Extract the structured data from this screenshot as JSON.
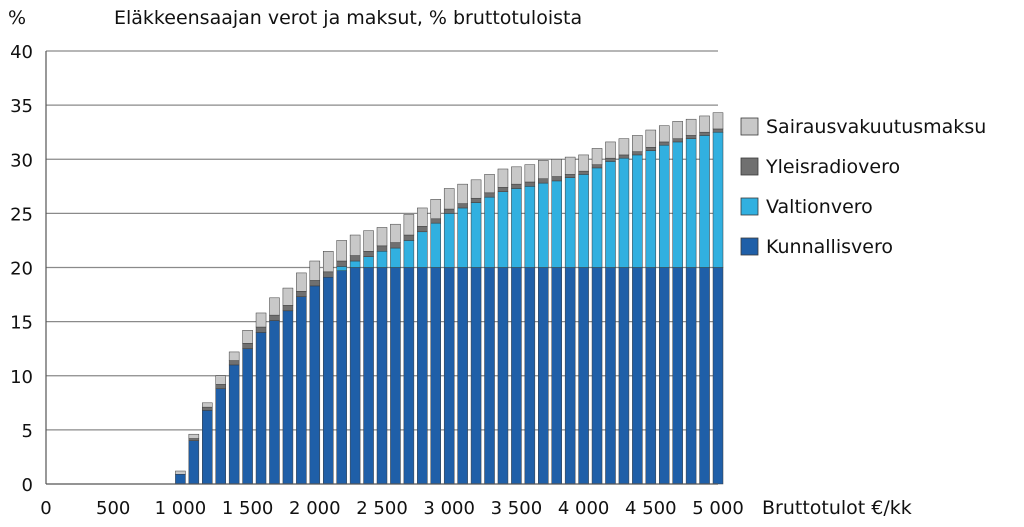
{
  "chart_data": {
    "type": "bar",
    "stacked": true,
    "title": "Eläkkeensaajan verot ja maksut, % bruttotuloista",
    "ylabel": "%",
    "xlabel": "Bruttotulot €/kk",
    "ylim": [
      0,
      40
    ],
    "xlim": [
      0,
      5000
    ],
    "y_ticks": [
      0,
      5,
      10,
      15,
      20,
      25,
      30,
      35,
      40
    ],
    "x_ticks": [
      0,
      500,
      1000,
      1500,
      2000,
      2500,
      3000,
      3500,
      4000,
      4500,
      5000
    ],
    "x_tick_labels": [
      "0",
      "500",
      "1 000",
      "1 500",
      "2 000",
      "2 500",
      "3 000",
      "3 500",
      "4 000",
      "4 500",
      "5 000"
    ],
    "grid": true,
    "legend_position": "right",
    "x": [
      1000,
      1100,
      1200,
      1300,
      1400,
      1500,
      1600,
      1700,
      1800,
      1900,
      2000,
      2100,
      2200,
      2300,
      2400,
      2500,
      2600,
      2700,
      2800,
      2900,
      3000,
      3100,
      3200,
      3300,
      3400,
      3500,
      3600,
      3700,
      3800,
      3900,
      4000,
      4100,
      4200,
      4300,
      4400,
      4500,
      4600,
      4700,
      4800,
      4900,
      5000
    ],
    "series": [
      {
        "name": "Kunnallisvero",
        "color": "#1f5fa8",
        "values": [
          0.9,
          4.0,
          6.8,
          8.8,
          11.0,
          12.5,
          14.0,
          15.1,
          16.0,
          17.3,
          18.3,
          19.1,
          19.7,
          20.0,
          20.0,
          20.0,
          20.0,
          20.0,
          20.0,
          20.0,
          20.0,
          20.0,
          20.0,
          20.0,
          20.0,
          20.0,
          20.0,
          20.0,
          20.0,
          20.0,
          20.0,
          20.0,
          20.0,
          20.0,
          20.0,
          20.0,
          20.0,
          20.0,
          20.0,
          20.0,
          20.0
        ]
      },
      {
        "name": "Valtionvero",
        "color": "#31b0e0",
        "values": [
          0.0,
          0.0,
          0.0,
          0.0,
          0.0,
          0.0,
          0.0,
          0.0,
          0.0,
          0.0,
          0.0,
          0.0,
          0.4,
          0.6,
          1.0,
          1.5,
          1.8,
          2.5,
          3.3,
          4.1,
          5.0,
          5.5,
          6.0,
          6.5,
          7.0,
          7.3,
          7.5,
          7.8,
          8.0,
          8.3,
          8.6,
          9.2,
          9.8,
          10.1,
          10.4,
          10.8,
          11.3,
          11.6,
          11.9,
          12.2,
          12.5
        ]
      },
      {
        "name": "Yleisradiovero",
        "color": "#707070",
        "values": [
          0.0,
          0.2,
          0.3,
          0.4,
          0.4,
          0.5,
          0.5,
          0.5,
          0.5,
          0.5,
          0.5,
          0.5,
          0.5,
          0.5,
          0.5,
          0.5,
          0.5,
          0.5,
          0.5,
          0.4,
          0.4,
          0.4,
          0.4,
          0.4,
          0.4,
          0.4,
          0.4,
          0.4,
          0.4,
          0.3,
          0.3,
          0.3,
          0.3,
          0.3,
          0.3,
          0.3,
          0.3,
          0.3,
          0.3,
          0.3,
          0.3
        ]
      },
      {
        "name": "Sairausvakuutusmaksu",
        "color": "#c8c8c8",
        "values": [
          0.3,
          0.4,
          0.4,
          0.8,
          0.8,
          1.2,
          1.3,
          1.6,
          1.6,
          1.7,
          1.8,
          1.9,
          1.9,
          1.9,
          1.9,
          1.7,
          1.7,
          1.9,
          1.7,
          1.8,
          1.9,
          1.8,
          1.7,
          1.7,
          1.7,
          1.6,
          1.6,
          1.7,
          1.6,
          1.6,
          1.5,
          1.5,
          1.5,
          1.5,
          1.5,
          1.6,
          1.5,
          1.6,
          1.5,
          1.5,
          1.5
        ]
      }
    ]
  }
}
